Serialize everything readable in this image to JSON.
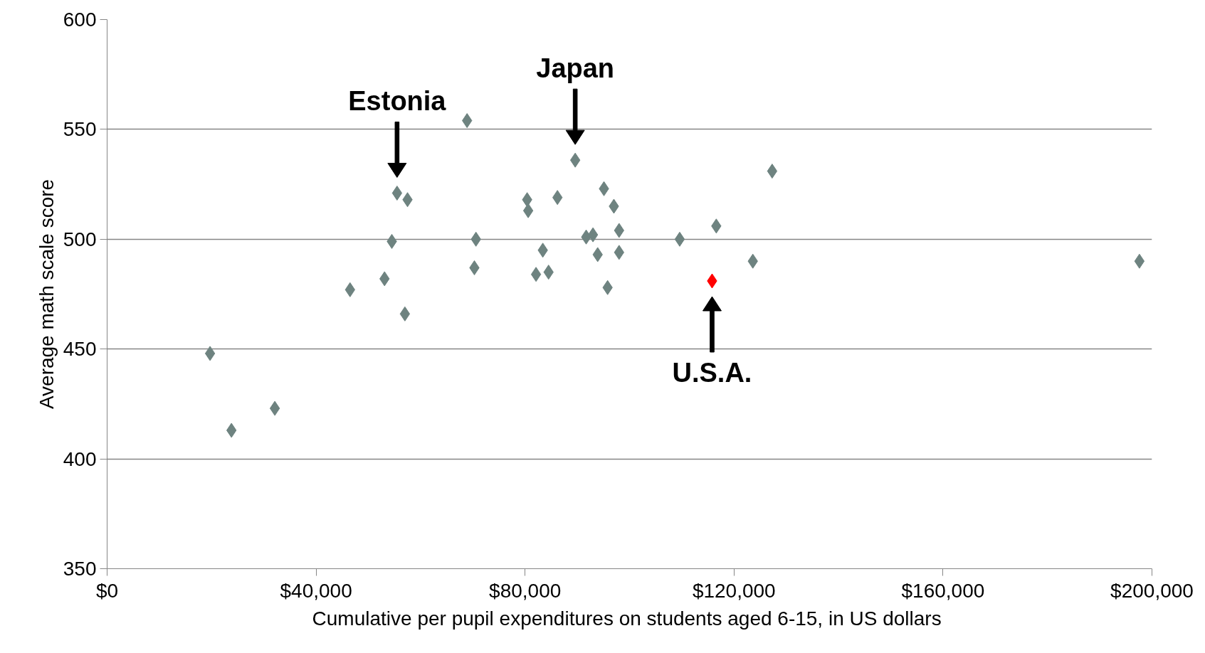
{
  "chart_data": {
    "type": "scatter",
    "xlabel": "Cumulative per pupil expenditures  on students aged 6-15, in US dollars",
    "ylabel": "Average math scale score",
    "x": [
      19700,
      23800,
      32100,
      46500,
      53100,
      54500,
      55500,
      57500,
      57000,
      68900,
      70600,
      70300,
      80400,
      80600,
      82100,
      83400,
      84500,
      86200,
      89600,
      91700,
      93000,
      93900,
      95100,
      95800,
      97000,
      98000,
      98000,
      109600,
      115800,
      116600,
      123600,
      127300,
      197600
    ],
    "values": [
      448,
      413,
      423,
      477,
      482,
      499,
      521,
      518,
      466,
      554,
      500,
      487,
      518,
      513,
      484,
      495,
      485,
      519,
      536,
      501,
      502,
      493,
      523,
      478,
      515,
      504,
      494,
      500,
      481,
      506,
      490,
      531,
      490
    ],
    "colors": [
      "#6e8380",
      "#6e8380",
      "#6e8380",
      "#6e8380",
      "#6e8380",
      "#6e8380",
      "#6e8380",
      "#6e8380",
      "#6e8380",
      "#6e8380",
      "#6e8380",
      "#6e8380",
      "#6e8380",
      "#6e8380",
      "#6e8380",
      "#6e8380",
      "#6e8380",
      "#6e8380",
      "#6e8380",
      "#6e8380",
      "#6e8380",
      "#6e8380",
      "#6e8380",
      "#6e8380",
      "#6e8380",
      "#6e8380",
      "#6e8380",
      "#6e8380",
      "#ff0000",
      "#6e8380",
      "#6e8380",
      "#6e8380",
      "#6e8380"
    ],
    "marker": "diamond",
    "grid": "y",
    "xlim": [
      0,
      200000
    ],
    "ylim": [
      350,
      600
    ],
    "xticks": [
      {
        "value": 0,
        "label": "$0"
      },
      {
        "value": 40000,
        "label": "$40,000"
      },
      {
        "value": 80000,
        "label": "$80,000"
      },
      {
        "value": 120000,
        "label": "$120,000"
      },
      {
        "value": 160000,
        "label": "$160,000"
      },
      {
        "value": 200000,
        "label": "$200,000"
      }
    ],
    "yticks": [
      350,
      400,
      450,
      500,
      550,
      600
    ],
    "annotations": [
      {
        "text": "Estonia",
        "x": 55500,
        "y": 521
      },
      {
        "text": "Japan",
        "x": 89600,
        "y": 536
      },
      {
        "text": "U.S.A.",
        "x": 115800,
        "y": 481
      }
    ]
  }
}
